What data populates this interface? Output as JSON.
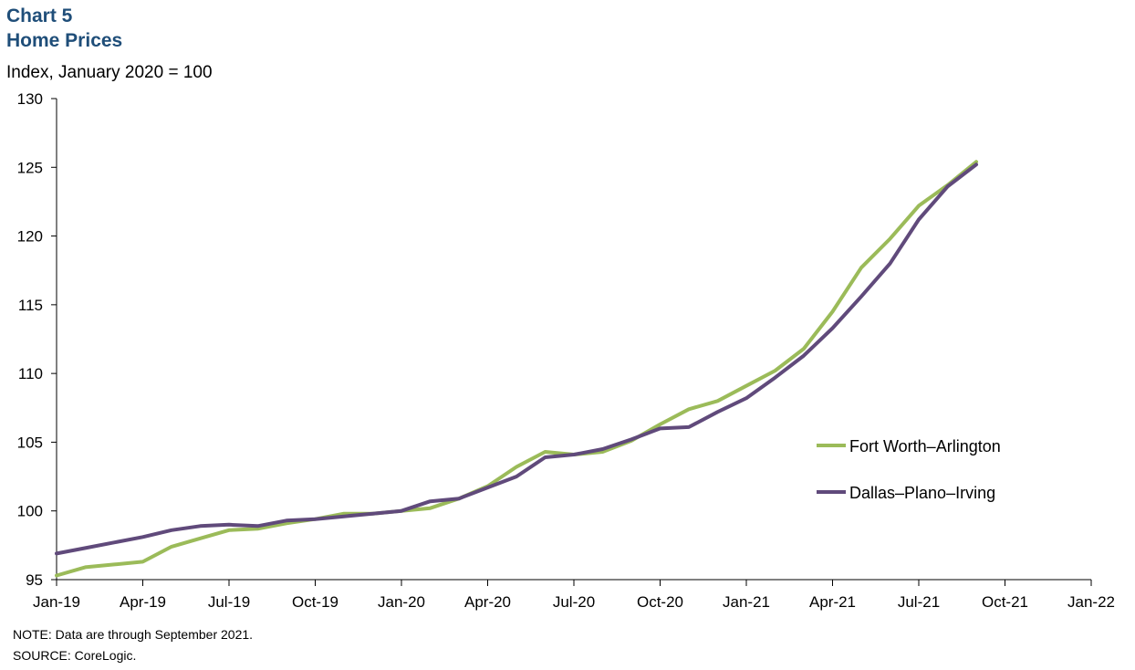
{
  "header": {
    "chart_number": "Chart 5",
    "title": "Home Prices",
    "subtitle": "Index, January 2020 = 100"
  },
  "footer": {
    "note": "NOTE:  Data are through September 2021.",
    "source": "SOURCE:  CoreLogic."
  },
  "chart_data": {
    "type": "line",
    "title": "Home Prices",
    "ylabel": "Index, January 2020 = 100",
    "xlabel": "",
    "ylim": [
      95,
      130
    ],
    "y_ticks": [
      95,
      100,
      105,
      110,
      115,
      120,
      125,
      130
    ],
    "x_ticks": [
      "Jan-19",
      "Apr-19",
      "Jul-19",
      "Oct-19",
      "Jan-20",
      "Apr-20",
      "Jul-20",
      "Oct-20",
      "Jan-21",
      "Apr-21",
      "Jul-21",
      "Oct-21",
      "Jan-22"
    ],
    "x_range": [
      "Jan-19",
      "Jan-22"
    ],
    "grid": false,
    "legend_position": "right",
    "x": [
      "Jan-19",
      "Feb-19",
      "Mar-19",
      "Apr-19",
      "May-19",
      "Jun-19",
      "Jul-19",
      "Aug-19",
      "Sep-19",
      "Oct-19",
      "Nov-19",
      "Dec-19",
      "Jan-20",
      "Feb-20",
      "Mar-20",
      "Apr-20",
      "May-20",
      "Jun-20",
      "Jul-20",
      "Aug-20",
      "Sep-20",
      "Oct-20",
      "Nov-20",
      "Dec-20",
      "Jan-21",
      "Feb-21",
      "Mar-21",
      "Apr-21",
      "May-21",
      "Jun-21",
      "Jul-21",
      "Aug-21",
      "Sep-21"
    ],
    "series": [
      {
        "name": "Fort Worth–Arlington",
        "color": "#9bbb59",
        "values": [
          95.3,
          95.9,
          96.1,
          96.3,
          97.4,
          98.0,
          98.6,
          98.7,
          99.1,
          99.4,
          99.8,
          99.8,
          100.0,
          100.2,
          100.9,
          101.8,
          103.2,
          104.3,
          104.1,
          104.3,
          105.1,
          106.3,
          107.4,
          108.0,
          109.1,
          110.2,
          111.8,
          114.5,
          117.7,
          119.8,
          122.2,
          123.7,
          125.4
        ]
      },
      {
        "name": "Dallas–Plano–Irving",
        "color": "#604a7b",
        "values": [
          96.9,
          97.3,
          97.7,
          98.1,
          98.6,
          98.9,
          99.0,
          98.9,
          99.3,
          99.4,
          99.6,
          99.8,
          100.0,
          100.7,
          100.9,
          101.7,
          102.5,
          103.9,
          104.1,
          104.5,
          105.2,
          106.0,
          106.1,
          107.2,
          108.2,
          109.7,
          111.3,
          113.3,
          115.6,
          118.0,
          121.2,
          123.6,
          125.2
        ]
      }
    ]
  }
}
